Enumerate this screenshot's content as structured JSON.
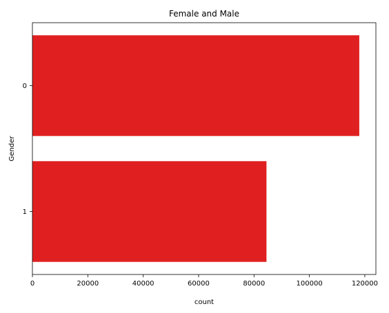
{
  "chart_data": {
    "type": "bar",
    "orientation": "horizontal",
    "title": "Female and Male",
    "xlabel": "count",
    "ylabel": "Gender",
    "categories": [
      "0",
      "1"
    ],
    "values": [
      118000,
      84500
    ],
    "xlim": [
      0,
      124000
    ],
    "xticks": [
      0,
      20000,
      40000,
      60000,
      80000,
      100000,
      120000
    ],
    "bar_color": "#e02020",
    "grid": false,
    "legend": "none"
  }
}
